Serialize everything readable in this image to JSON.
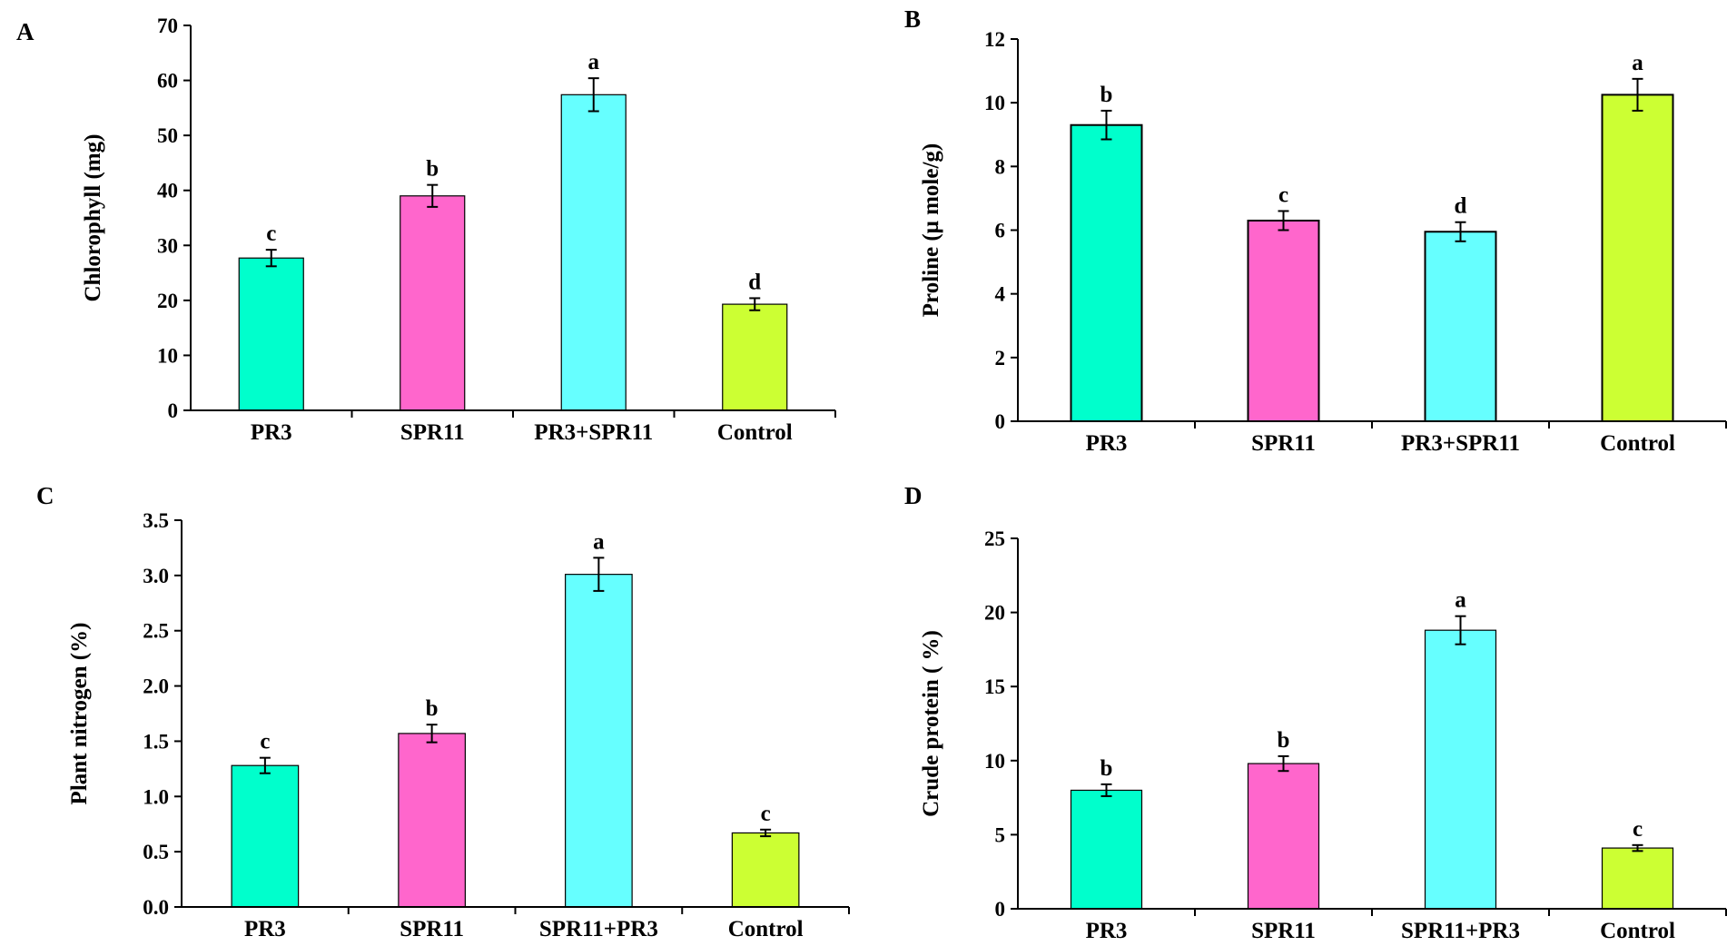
{
  "colors": {
    "bar_1": "#00ffcc",
    "bar_2": "#ff66cc",
    "bar_3": "#66ffff",
    "bar_4": "#ccff33",
    "axis": "#000000"
  },
  "chart_data": [
    {
      "type": "bar",
      "panel_label": "A",
      "title": "",
      "xlabel": "",
      "ylabel": "Chlorophyll (mg)",
      "categories": [
        "PR3",
        "SPR11",
        "PR3+SPR11",
        "Control"
      ],
      "values": [
        27.7,
        39.0,
        57.4,
        19.3
      ],
      "errors": [
        1.5,
        2.0,
        3.0,
        1.1
      ],
      "significance": [
        "c",
        "b",
        "a",
        "d"
      ],
      "ylim": [
        0,
        70
      ],
      "yticks": [
        0,
        10,
        20,
        30,
        40,
        50,
        60,
        70
      ],
      "ytick_labels": [
        "0",
        "10",
        "20",
        "30",
        "40",
        "50",
        "60",
        "70"
      ]
    },
    {
      "type": "bar",
      "panel_label": "B",
      "title": "",
      "xlabel": "",
      "ylabel": "Proline (μ mole/g)",
      "categories": [
        "PR3",
        "SPR11",
        "PR3+SPR11",
        "Control"
      ],
      "values": [
        9.3,
        6.3,
        5.95,
        10.25
      ],
      "errors": [
        0.45,
        0.3,
        0.3,
        0.5
      ],
      "significance": [
        "b",
        "c",
        "d",
        "a"
      ],
      "ylim": [
        0,
        12
      ],
      "yticks": [
        0,
        2,
        4,
        6,
        8,
        10,
        12
      ],
      "ytick_labels": [
        "0",
        "2",
        "4",
        "6",
        "8",
        "10",
        "12"
      ]
    },
    {
      "type": "bar",
      "panel_label": "C",
      "title": "",
      "xlabel": "",
      "ylabel": "Plant nitrogen (%)",
      "categories": [
        "PR3",
        "SPR11",
        "SPR11+PR3",
        "Control"
      ],
      "values": [
        1.28,
        1.57,
        3.01,
        0.67
      ],
      "errors": [
        0.07,
        0.08,
        0.15,
        0.03
      ],
      "significance": [
        "c",
        "b",
        "a",
        "c"
      ],
      "ylim": [
        0,
        3.5
      ],
      "yticks": [
        0,
        0.5,
        1.0,
        1.5,
        2.0,
        2.5,
        3.0,
        3.5
      ],
      "ytick_labels": [
        "0.0",
        "0.5",
        "1.0",
        "1.5",
        "2.0",
        "2.5",
        "3.0",
        "3.5"
      ]
    },
    {
      "type": "bar",
      "panel_label": "D",
      "title": "",
      "xlabel": "",
      "ylabel": "Crude protein ( %)",
      "categories": [
        "PR3",
        "SPR11",
        "SPR11+PR3",
        "Control"
      ],
      "values": [
        8.0,
        9.8,
        18.8,
        4.1
      ],
      "errors": [
        0.4,
        0.5,
        0.95,
        0.2
      ],
      "significance": [
        "b",
        "b",
        "a",
        "c"
      ],
      "ylim": [
        0,
        25
      ],
      "yticks": [
        0,
        5,
        10,
        15,
        20,
        25
      ],
      "ytick_labels": [
        "0",
        "5",
        "10",
        "15",
        "20",
        "25"
      ]
    }
  ]
}
